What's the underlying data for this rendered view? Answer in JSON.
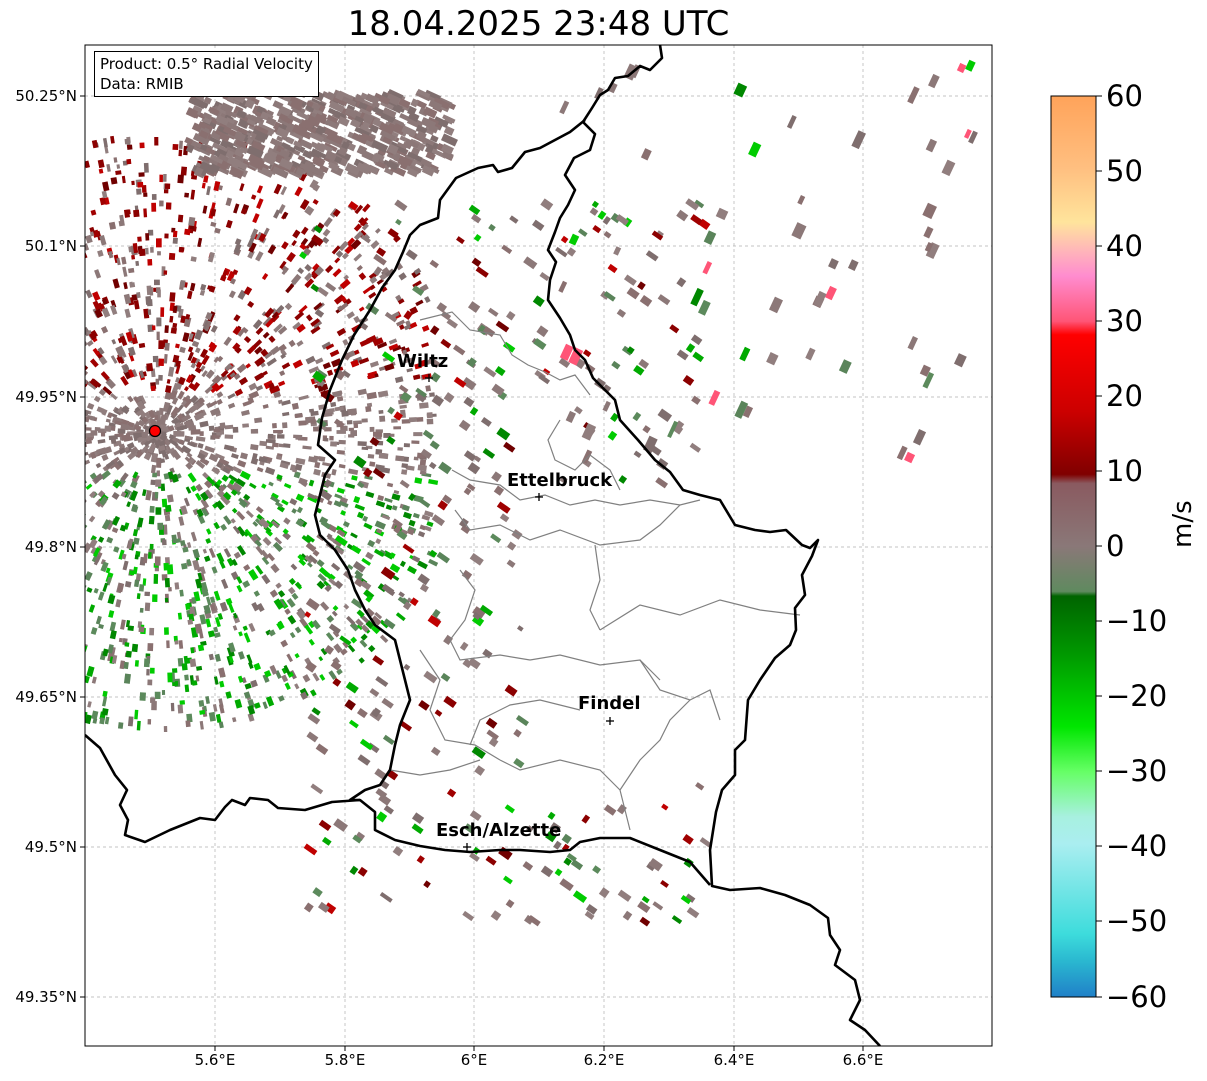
{
  "title": "18.04.2025 23:48 UTC",
  "info": {
    "product": "Product: 0.5° Radial Velocity",
    "data": "Data: RMIB"
  },
  "axes": {
    "lat_labels": [
      "50.25°N",
      "50.1°N",
      "49.95°N",
      "49.8°N",
      "49.65°N",
      "49.5°N",
      "49.35°N"
    ],
    "lon_labels": [
      "5.6°E",
      "5.8°E",
      "6°E",
      "6.2°E",
      "6.4°E",
      "6.6°E"
    ]
  },
  "cities": [
    {
      "name": "Wiltz"
    },
    {
      "name": "Ettelbruck"
    },
    {
      "name": "Findel"
    },
    {
      "name": "Esch/Alzette"
    }
  ],
  "colorbar": {
    "unit": "m/s",
    "ticks": [
      "60",
      "50",
      "40",
      "30",
      "20",
      "10",
      "0",
      "−10",
      "−20",
      "−30",
      "−40",
      "−50",
      "−60"
    ],
    "range": [
      -60,
      60
    ],
    "colors_top_to_bottom": [
      "#ffa35a",
      "#ffbf80",
      "#ffe49c",
      "#ffb8b8",
      "#ff8ccf",
      "#ff5577",
      "#ff0000",
      "#cc0000",
      "#800000",
      "#8a5a60",
      "#8a7878",
      "#5f8a5f",
      "#006400",
      "#009900",
      "#00e600",
      "#66ff66",
      "#a8f0e0",
      "#aaeef0",
      "#3ddcdc",
      "#2ab8d0",
      "#2080c8"
    ]
  },
  "colors": {
    "border_national": "#000000",
    "border_canton": "#808080",
    "radar_site": "#ff0000",
    "vel_receding": "#8b0000",
    "vel_zero": "#8c7878",
    "vel_approach": "#5c8a5c"
  }
}
